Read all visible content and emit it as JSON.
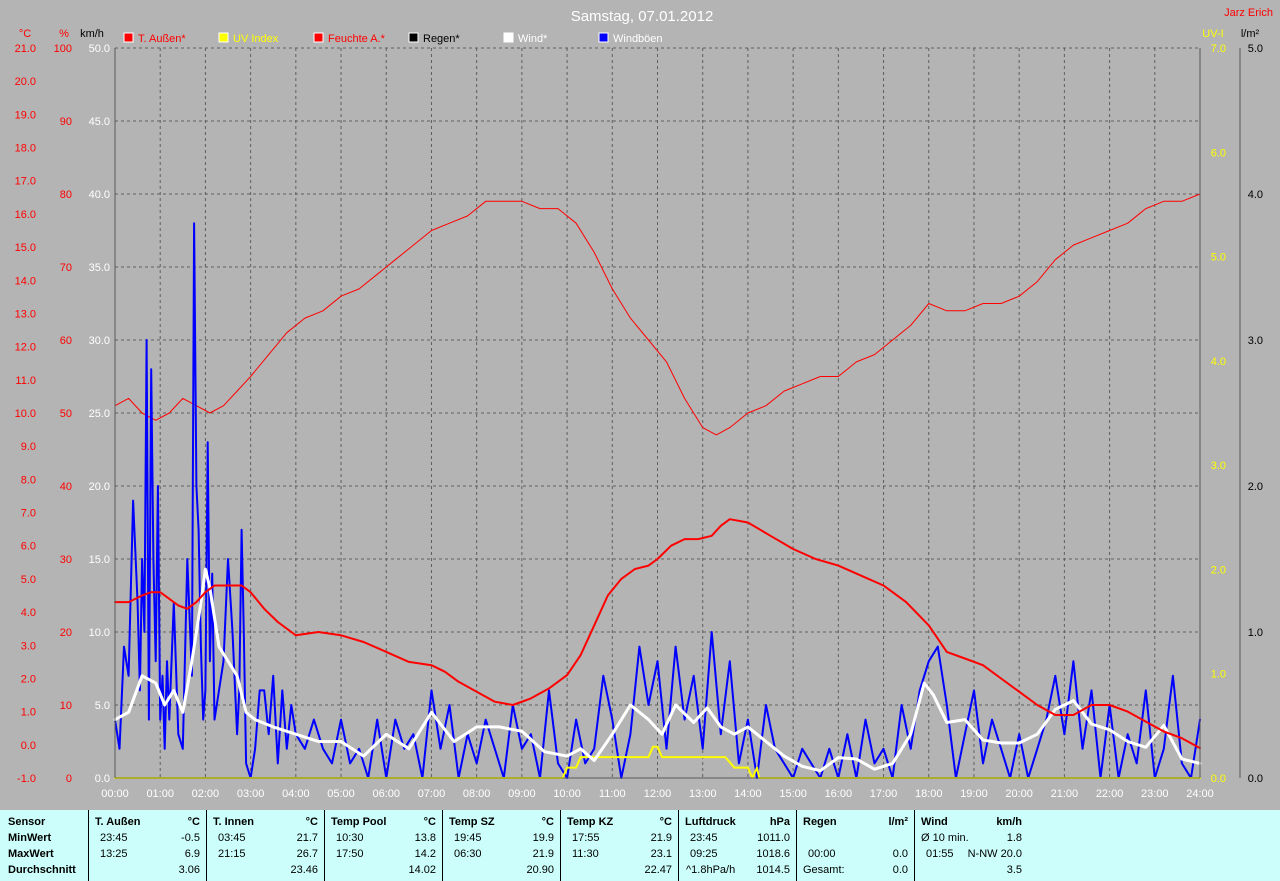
{
  "header": {
    "title": "Samstag, 07.01.2012",
    "author": "Jarz Erich",
    "unit_left_temp": "°C",
    "unit_left_pct": "%",
    "unit_left_wind": "km/h",
    "unit_right_uv": "UV-I",
    "unit_right_rain": "l/m²"
  },
  "legend": [
    {
      "label": "T. Außen*",
      "color": "#ff0000"
    },
    {
      "label": "UV Index",
      "color": "#ffff00"
    },
    {
      "label": "Feuchte A.*",
      "color": "#ff0000"
    },
    {
      "label": "Regen*",
      "color": "#000000"
    },
    {
      "label": "Wind*",
      "color": "#ffffff"
    },
    {
      "label": "Windböen",
      "color": "#0000ff"
    }
  ],
  "colors": {
    "background": "#b4b4b4",
    "temp": "#ff0000",
    "uv": "#ffff00",
    "wind": "#ffffff",
    "gust": "#0000ff",
    "stats_bg": "#ccfffb"
  },
  "chart_data": {
    "type": "line",
    "x_unit": "time of day (hours)",
    "x_range": [
      0,
      24
    ],
    "x_ticks": [
      "00:00",
      "01:00",
      "02:00",
      "03:00",
      "04:00",
      "05:00",
      "06:00",
      "07:00",
      "08:00",
      "09:00",
      "10:00",
      "11:00",
      "12:00",
      "13:00",
      "14:00",
      "15:00",
      "16:00",
      "17:00",
      "18:00",
      "19:00",
      "20:00",
      "21:00",
      "22:00",
      "23:00",
      "24:00"
    ],
    "axes": {
      "temp_c": {
        "range": [
          -1,
          21
        ],
        "ticks": [
          "-1.0",
          "0.0",
          "1.0",
          "2.0",
          "3.0",
          "4.0",
          "5.0",
          "6.0",
          "7.0",
          "8.0",
          "9.0",
          "10.0",
          "11.0",
          "12.0",
          "13.0",
          "14.0",
          "15.0",
          "16.0",
          "17.0",
          "18.0",
          "19.0",
          "20.0",
          "21.0"
        ]
      },
      "humidity_pct": {
        "range": [
          0,
          100
        ],
        "ticks": [
          "0",
          "10",
          "20",
          "30",
          "40",
          "50",
          "60",
          "70",
          "80",
          "90",
          "100"
        ]
      },
      "wind_kmh": {
        "range": [
          0,
          50
        ],
        "ticks": [
          "0.0",
          "5.0",
          "10.0",
          "15.0",
          "20.0",
          "25.0",
          "30.0",
          "35.0",
          "40.0",
          "45.0",
          "50.0"
        ]
      },
      "uv_index": {
        "range": [
          0,
          7
        ],
        "ticks": [
          "0.0",
          "1.0",
          "2.0",
          "3.0",
          "4.0",
          "5.0",
          "6.0",
          "7.0"
        ]
      },
      "rain_lm2": {
        "range": [
          0,
          5
        ],
        "ticks": [
          "0.0",
          "1.0",
          "2.0",
          "3.0",
          "4.0",
          "5.0"
        ]
      }
    },
    "grid": true,
    "series": [
      {
        "name": "T. Außen*",
        "axis": "temp_c",
        "color": "#ff0000",
        "width": 2,
        "x": [
          0,
          0.3,
          0.6,
          0.8,
          1.0,
          1.2,
          1.4,
          1.6,
          1.8,
          2.0,
          2.2,
          2.5,
          2.8,
          3.0,
          3.3,
          3.6,
          4.0,
          4.5,
          5.0,
          5.5,
          6.0,
          6.5,
          7.0,
          7.3,
          7.6,
          8.0,
          8.4,
          8.8,
          9.2,
          9.6,
          10.0,
          10.3,
          10.6,
          10.9,
          11.2,
          11.5,
          11.8,
          12.0,
          12.3,
          12.6,
          12.9,
          13.2,
          13.4,
          13.6,
          14.0,
          14.5,
          15.0,
          15.5,
          16.0,
          16.5,
          17.0,
          17.5,
          18.0,
          18.4,
          18.8,
          19.2,
          19.6,
          20.0,
          20.4,
          20.8,
          21.2,
          21.6,
          22.0,
          22.4,
          22.8,
          23.2,
          23.6,
          24.0
        ],
        "y": [
          4.3,
          4.3,
          4.5,
          4.6,
          4.6,
          4.4,
          4.2,
          4.1,
          4.3,
          4.6,
          4.8,
          4.8,
          4.8,
          4.6,
          4.1,
          3.7,
          3.3,
          3.4,
          3.3,
          3.1,
          2.8,
          2.5,
          2.4,
          2.2,
          1.9,
          1.6,
          1.3,
          1.2,
          1.4,
          1.7,
          2.1,
          2.7,
          3.6,
          4.5,
          5.0,
          5.3,
          5.4,
          5.6,
          6.0,
          6.2,
          6.2,
          6.3,
          6.6,
          6.8,
          6.7,
          6.3,
          5.9,
          5.6,
          5.4,
          5.1,
          4.8,
          4.3,
          3.6,
          2.8,
          2.6,
          2.4,
          2.0,
          1.6,
          1.2,
          0.9,
          0.9,
          1.2,
          1.2,
          1.0,
          0.7,
          0.4,
          0.2,
          -0.1
        ]
      },
      {
        "name": "Feuchte A.*",
        "axis": "humidity_pct",
        "color": "#ff0000",
        "width": 1,
        "x": [
          0,
          0.3,
          0.6,
          0.9,
          1.2,
          1.5,
          1.8,
          2.1,
          2.4,
          2.7,
          3.0,
          3.4,
          3.8,
          4.2,
          4.6,
          5.0,
          5.4,
          5.8,
          6.2,
          6.6,
          7.0,
          7.4,
          7.8,
          8.2,
          8.6,
          9.0,
          9.4,
          9.8,
          10.2,
          10.6,
          11.0,
          11.4,
          11.8,
          12.2,
          12.6,
          13.0,
          13.3,
          13.6,
          14.0,
          14.4,
          14.8,
          15.2,
          15.6,
          16.0,
          16.4,
          16.8,
          17.2,
          17.6,
          18.0,
          18.4,
          18.8,
          19.2,
          19.6,
          20.0,
          20.4,
          20.8,
          21.2,
          21.6,
          22.0,
          22.4,
          22.8,
          23.2,
          23.6,
          24.0
        ],
        "y": [
          51,
          52,
          50,
          49,
          50,
          52,
          51,
          50,
          51,
          53,
          55,
          58,
          61,
          63,
          64,
          66,
          67,
          69,
          71,
          73,
          75,
          76,
          77,
          79,
          79,
          79,
          78,
          78,
          76,
          72,
          67,
          63,
          60,
          57,
          52,
          48,
          47,
          48,
          50,
          51,
          53,
          54,
          55,
          55,
          57,
          58,
          60,
          62,
          65,
          64,
          64,
          65,
          65,
          66,
          68,
          71,
          73,
          74,
          75,
          76,
          78,
          79,
          79,
          80
        ]
      },
      {
        "name": "Wind*",
        "axis": "wind_kmh",
        "color": "#ffffff",
        "width": 3,
        "x": [
          0,
          0.3,
          0.6,
          0.9,
          1.1,
          1.3,
          1.5,
          1.7,
          1.9,
          2.0,
          2.1,
          2.3,
          2.5,
          2.7,
          2.9,
          3.1,
          3.5,
          4.0,
          4.5,
          5.0,
          5.5,
          6.0,
          6.5,
          7.0,
          7.5,
          8.0,
          8.5,
          9.0,
          9.5,
          10.0,
          10.3,
          10.6,
          11.0,
          11.4,
          11.8,
          12.1,
          12.4,
          12.8,
          13.1,
          13.4,
          13.7,
          14.0,
          14.4,
          14.8,
          15.2,
          15.6,
          16.0,
          16.4,
          16.8,
          17.2,
          17.6,
          17.9,
          18.1,
          18.4,
          18.8,
          19.2,
          19.6,
          20.0,
          20.4,
          20.8,
          21.2,
          21.6,
          22.0,
          22.4,
          22.8,
          23.2,
          23.6,
          24.0
        ],
        "y": [
          4,
          4.5,
          7,
          6.5,
          5,
          6,
          4.5,
          8,
          12,
          14.3,
          13,
          9,
          8,
          7,
          4.5,
          4,
          3.5,
          3,
          2.5,
          2.5,
          1.5,
          3,
          2,
          4.5,
          2.5,
          3.5,
          3.5,
          3.2,
          1.8,
          1.5,
          2,
          1.2,
          3,
          5,
          4,
          3,
          5,
          3.8,
          4.8,
          3.5,
          3,
          3.5,
          2.5,
          1.5,
          0.8,
          0.5,
          1.4,
          1.3,
          0.6,
          1,
          3,
          6.5,
          5.7,
          3.8,
          4,
          2.6,
          2.4,
          2.4,
          3,
          4.7,
          5.3,
          3.7,
          3.3,
          2.5,
          2.1,
          3.6,
          1.3,
          1
        ]
      },
      {
        "name": "Windböen",
        "axis": "wind_kmh",
        "color": "#0000ff",
        "width": 2,
        "x": [
          0,
          0.1,
          0.2,
          0.3,
          0.4,
          0.5,
          0.55,
          0.6,
          0.65,
          0.7,
          0.75,
          0.8,
          0.85,
          0.9,
          0.95,
          1.0,
          1.05,
          1.1,
          1.15,
          1.2,
          1.3,
          1.4,
          1.5,
          1.6,
          1.7,
          1.75,
          1.8,
          1.85,
          1.9,
          1.95,
          2.0,
          2.05,
          2.1,
          2.15,
          2.2,
          2.3,
          2.4,
          2.5,
          2.6,
          2.7,
          2.75,
          2.8,
          2.85,
          2.9,
          3.0,
          3.1,
          3.2,
          3.3,
          3.4,
          3.5,
          3.6,
          3.7,
          3.8,
          3.9,
          4.0,
          4.2,
          4.4,
          4.6,
          4.8,
          5.0,
          5.2,
          5.4,
          5.6,
          5.8,
          6.0,
          6.2,
          6.4,
          6.6,
          6.8,
          7.0,
          7.2,
          7.4,
          7.6,
          7.8,
          8.0,
          8.2,
          8.4,
          8.6,
          8.8,
          9.0,
          9.2,
          9.4,
          9.6,
          9.8,
          10.0,
          10.2,
          10.4,
          10.6,
          10.8,
          11.0,
          11.2,
          11.4,
          11.6,
          11.8,
          12.0,
          12.2,
          12.4,
          12.6,
          12.8,
          13.0,
          13.2,
          13.4,
          13.6,
          13.8,
          14.0,
          14.2,
          14.4,
          14.6,
          14.8,
          15.0,
          15.2,
          15.4,
          15.6,
          15.8,
          16.0,
          16.2,
          16.4,
          16.6,
          16.8,
          17.0,
          17.2,
          17.4,
          17.6,
          17.8,
          18.0,
          18.2,
          18.4,
          18.6,
          18.8,
          19.0,
          19.2,
          19.4,
          19.6,
          19.8,
          20.0,
          20.2,
          20.4,
          20.6,
          20.8,
          21.0,
          21.2,
          21.4,
          21.6,
          21.8,
          22.0,
          22.2,
          22.4,
          22.6,
          22.8,
          23.0,
          23.2,
          23.4,
          23.6,
          23.8,
          24.0
        ],
        "y": [
          4,
          2,
          9,
          7,
          19,
          12,
          6,
          15,
          10,
          30,
          4,
          28,
          15,
          8,
          20,
          4,
          7,
          2,
          8,
          4,
          12,
          3,
          2,
          15,
          7,
          38,
          20,
          17,
          9,
          4,
          6,
          23,
          8,
          14,
          4,
          6,
          8,
          15,
          10,
          3,
          6,
          17,
          10,
          1,
          0,
          2,
          6,
          6,
          3,
          7,
          1,
          6,
          2,
          5,
          3,
          2,
          4,
          2,
          1,
          4,
          1,
          2,
          0,
          4,
          0,
          4,
          2,
          3,
          0,
          6,
          2,
          5,
          0,
          3,
          1,
          4,
          2,
          0,
          5,
          2,
          3,
          0,
          6,
          1,
          0,
          4,
          1,
          2,
          7,
          4,
          0,
          3,
          9,
          5,
          8,
          2,
          9,
          4,
          7,
          2,
          10,
          3,
          8,
          1,
          4,
          0,
          5,
          2,
          1,
          0,
          2,
          1,
          0,
          2,
          0,
          3,
          0,
          4,
          1,
          2,
          0,
          5,
          2,
          6,
          8,
          9,
          5,
          0,
          3,
          6,
          1,
          4,
          2,
          0,
          3,
          0,
          2,
          4,
          7,
          3,
          8,
          2,
          6,
          0,
          5,
          0,
          3,
          1,
          6,
          0,
          2,
          7,
          1,
          0,
          4
        ]
      },
      {
        "name": "UV Index",
        "axis": "uv_index",
        "color": "#ffff00",
        "width": 2,
        "x": [
          0,
          9.9,
          10.0,
          10.2,
          10.3,
          10.5,
          11.0,
          11.5,
          11.8,
          11.9,
          12.0,
          12.1,
          12.2,
          12.5,
          13.0,
          13.5,
          13.7,
          13.8,
          14.0,
          14.1,
          14.2,
          14.25,
          14.3,
          14.4,
          24.0
        ],
        "y": [
          0,
          0,
          0.1,
          0.1,
          0.2,
          0.2,
          0.2,
          0.2,
          0.2,
          0.3,
          0.3,
          0.2,
          0.2,
          0.2,
          0.2,
          0.2,
          0.1,
          0.1,
          0.1,
          0,
          0.1,
          0,
          0,
          0,
          0
        ]
      }
    ]
  },
  "stats": {
    "row_labels": [
      "Sensor",
      "MinWert",
      "MaxWert",
      "Durchschnitt"
    ],
    "columns": [
      {
        "name": "T. Außen",
        "unit": "°C",
        "min_time": "23:45",
        "min": "-0.5",
        "max_time": "13:25",
        "max": "6.9",
        "avg_time": "",
        "avg": "3.06"
      },
      {
        "name": "T. Innen",
        "unit": "°C",
        "min_time": "03:45",
        "min": "21.7",
        "max_time": "21:15",
        "max": "26.7",
        "avg_time": "",
        "avg": "23.46"
      },
      {
        "name": "Temp Pool",
        "unit": "°C",
        "min_time": "10:30",
        "min": "13.8",
        "max_time": "17:50",
        "max": "14.2",
        "avg_time": "",
        "avg": "14.02"
      },
      {
        "name": "Temp SZ",
        "unit": "°C",
        "min_time": "19:45",
        "min": "19.9",
        "max_time": "06:30",
        "max": "21.9",
        "avg_time": "",
        "avg": "20.90"
      },
      {
        "name": "Temp KZ",
        "unit": "°C",
        "min_time": "17:55",
        "min": "21.9",
        "max_time": "11:30",
        "max": "23.1",
        "avg_time": "",
        "avg": "22.47"
      },
      {
        "name": "Luftdruck",
        "unit": "hPa",
        "min_time": "23:45",
        "min": "1011.0",
        "max_time": "09:25",
        "max": "1018.6",
        "avg_time": "^1.8hPa/h",
        "avg": "1014.5"
      },
      {
        "name": "Regen",
        "unit": "l/m²",
        "min_time": "",
        "min": "",
        "max_time": "00:00",
        "max": "0.0",
        "avg_time": "Gesamt:",
        "avg": "0.0"
      },
      {
        "name": "Wind",
        "unit": "km/h",
        "min_time": "Ø 10 min.",
        "min": "1.8",
        "max_time": "01:55",
        "max": "N-NW 20.0",
        "avg_time": "",
        "avg": "3.5"
      }
    ]
  }
}
